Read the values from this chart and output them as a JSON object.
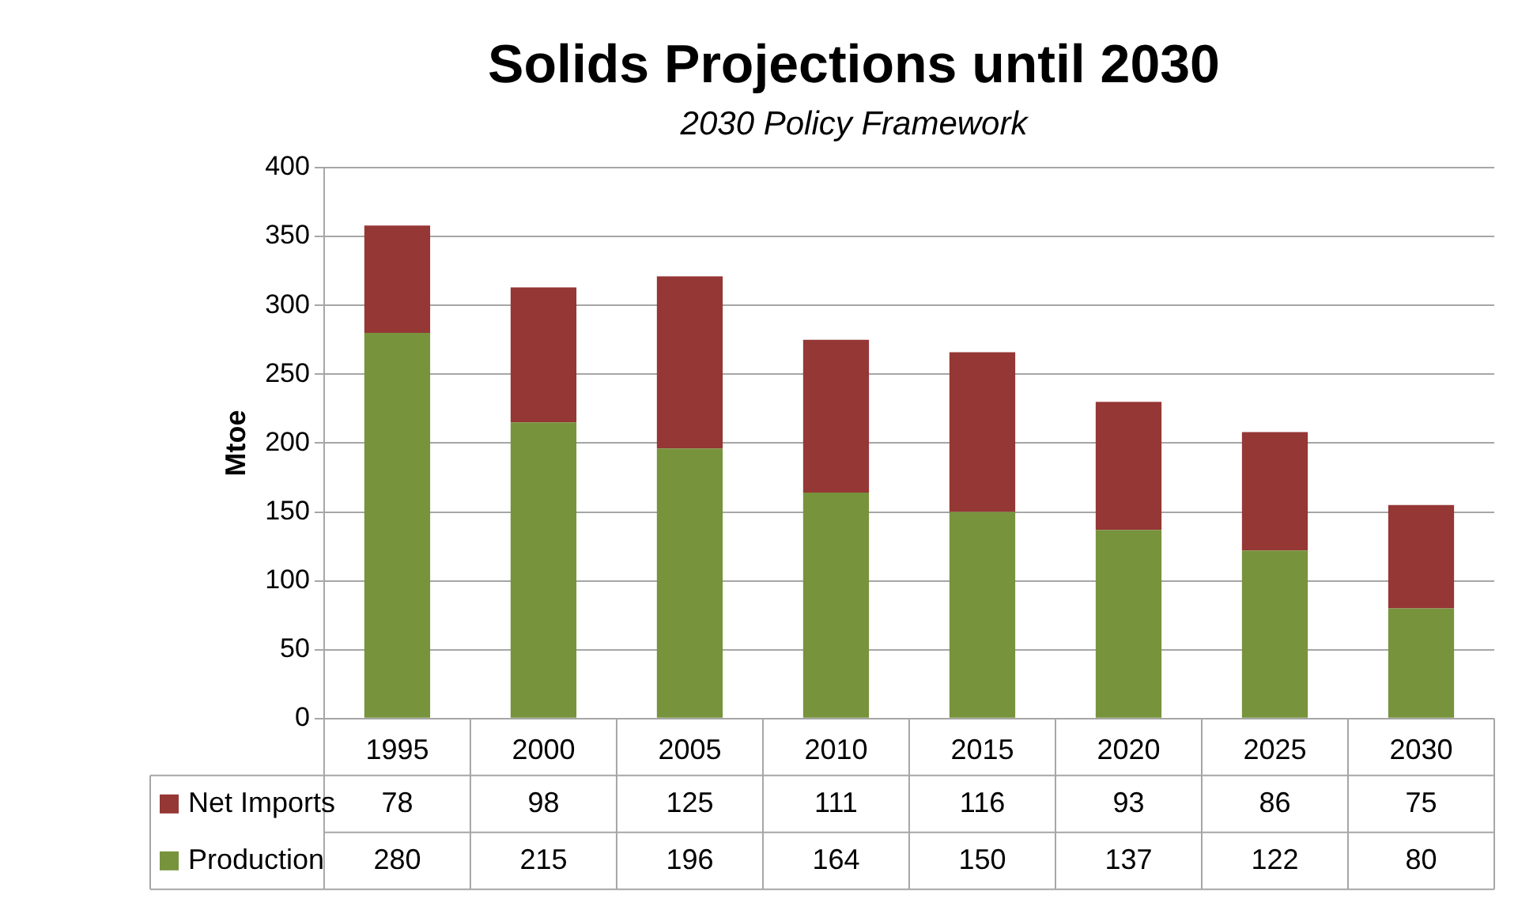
{
  "chart_data": {
    "type": "bar",
    "title": "Solids Projections until 2030",
    "subtitle": "2030 Policy Framework",
    "ylabel": "Mtoe",
    "categories": [
      "1995",
      "2000",
      "2005",
      "2010",
      "2015",
      "2020",
      "2025",
      "2030"
    ],
    "series": [
      {
        "name": "Production",
        "color": "#77933c",
        "values": [
          280,
          215,
          196,
          164,
          150,
          137,
          122,
          80
        ]
      },
      {
        "name": "Net Imports",
        "color": "#953735",
        "values": [
          78,
          98,
          125,
          111,
          116,
          93,
          86,
          75
        ]
      }
    ],
    "stacked": true,
    "ylim": [
      0,
      400
    ],
    "yticks": [
      0,
      50,
      100,
      150,
      200,
      250,
      300,
      350,
      400
    ],
    "grid": "y",
    "legend": "bottom",
    "data_labels": true
  }
}
